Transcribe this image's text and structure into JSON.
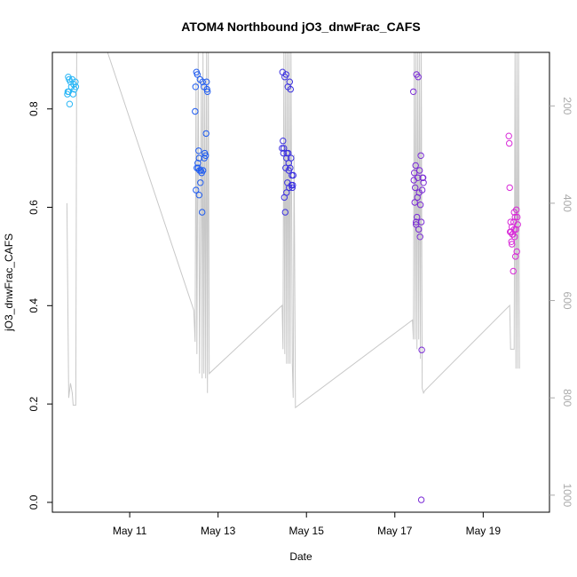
{
  "chart_data": {
    "type": "scatter",
    "title": "ATOM4 Northbound jO3_dnwFrac_CAFS",
    "xlabel": "Date",
    "ylabel": "jO3_dnwFrac_CAFS",
    "x_unit": "days in May",
    "xlim": [
      9.25,
      20.5
    ],
    "ylim": [
      -0.02,
      0.915
    ],
    "x_ticks": [
      {
        "value": 11,
        "label": "May 11"
      },
      {
        "value": 13,
        "label": "May 13"
      },
      {
        "value": 15,
        "label": "May 15"
      },
      {
        "value": 17,
        "label": "May 17"
      },
      {
        "value": 19,
        "label": "May 19"
      }
    ],
    "y_ticks": [
      {
        "value": 0.0,
        "label": "0.0"
      },
      {
        "value": 0.2,
        "label": "0.2"
      },
      {
        "value": 0.4,
        "label": "0.4"
      },
      {
        "value": 0.6,
        "label": "0.6"
      },
      {
        "value": 0.8,
        "label": "0.8"
      }
    ],
    "y2_ticks": [
      {
        "value": 200,
        "label": "200"
      },
      {
        "value": 400,
        "label": "400"
      },
      {
        "value": 600,
        "label": "600"
      },
      {
        "value": 800,
        "label": "800"
      },
      {
        "value": 1000,
        "label": "1000"
      }
    ],
    "y2lim": [
      1035,
      90
    ],
    "y2_reversed": true,
    "series": [
      {
        "color": "#29b6f6",
        "points": [
          [
            9.59,
            0.83
          ],
          [
            9.61,
            0.865
          ],
          [
            9.62,
            0.835
          ],
          [
            9.64,
            0.81
          ],
          [
            9.66,
            0.855
          ],
          [
            9.68,
            0.845
          ],
          [
            9.7,
            0.86
          ],
          [
            9.72,
            0.83
          ],
          [
            9.73,
            0.85
          ],
          [
            9.75,
            0.84
          ],
          [
            9.77,
            0.855
          ],
          [
            9.78,
            0.845
          ],
          [
            9.63,
            0.86
          ],
          [
            9.6,
            0.835
          ]
        ]
      },
      {
        "color": "#1e5bf0",
        "points": [
          [
            12.48,
            0.795
          ],
          [
            12.49,
            0.845
          ],
          [
            12.5,
            0.635
          ],
          [
            12.51,
            0.875
          ],
          [
            12.53,
            0.87
          ],
          [
            12.54,
            0.69
          ],
          [
            12.55,
            0.68
          ],
          [
            12.56,
            0.715
          ],
          [
            12.57,
            0.625
          ],
          [
            12.58,
            0.675
          ],
          [
            12.59,
            0.86
          ],
          [
            12.6,
            0.65
          ],
          [
            12.61,
            0.675
          ],
          [
            12.63,
            0.67
          ],
          [
            12.64,
            0.59
          ],
          [
            12.65,
            0.855
          ],
          [
            12.66,
            0.675
          ],
          [
            12.68,
            0.845
          ],
          [
            12.69,
            0.7
          ],
          [
            12.7,
            0.71
          ],
          [
            12.72,
            0.705
          ],
          [
            12.73,
            0.75
          ],
          [
            12.74,
            0.855
          ],
          [
            12.75,
            0.84
          ],
          [
            12.76,
            0.835
          ],
          [
            12.52,
            0.68
          ],
          [
            12.57,
            0.7
          ]
        ]
      },
      {
        "color": "#3b30e0",
        "points": [
          [
            14.45,
            0.72
          ],
          [
            14.46,
            0.875
          ],
          [
            14.47,
            0.735
          ],
          [
            14.48,
            0.71
          ],
          [
            14.49,
            0.72
          ],
          [
            14.5,
            0.62
          ],
          [
            14.51,
            0.865
          ],
          [
            14.52,
            0.59
          ],
          [
            14.53,
            0.68
          ],
          [
            14.54,
            0.87
          ],
          [
            14.55,
            0.63
          ],
          [
            14.56,
            0.71
          ],
          [
            14.57,
            0.65
          ],
          [
            14.58,
            0.845
          ],
          [
            14.59,
            0.71
          ],
          [
            14.6,
            0.69
          ],
          [
            14.61,
            0.64
          ],
          [
            14.62,
            0.855
          ],
          [
            14.63,
            0.68
          ],
          [
            14.64,
            0.84
          ],
          [
            14.65,
            0.7
          ],
          [
            14.66,
            0.645
          ],
          [
            14.67,
            0.665
          ],
          [
            14.68,
            0.64
          ],
          [
            14.69,
            0.645
          ],
          [
            14.7,
            0.665
          ],
          [
            14.6,
            0.675
          ],
          [
            14.55,
            0.7
          ]
        ]
      },
      {
        "color": "#7a2ad6",
        "points": [
          [
            17.42,
            0.835
          ],
          [
            17.43,
            0.655
          ],
          [
            17.44,
            0.67
          ],
          [
            17.45,
            0.61
          ],
          [
            17.46,
            0.64
          ],
          [
            17.47,
            0.685
          ],
          [
            17.48,
            0.565
          ],
          [
            17.49,
            0.87
          ],
          [
            17.5,
            0.58
          ],
          [
            17.51,
            0.62
          ],
          [
            17.52,
            0.66
          ],
          [
            17.53,
            0.865
          ],
          [
            17.54,
            0.555
          ],
          [
            17.55,
            0.63
          ],
          [
            17.56,
            0.675
          ],
          [
            17.57,
            0.54
          ],
          [
            17.58,
            0.605
          ],
          [
            17.59,
            0.705
          ],
          [
            17.6,
            0.57
          ],
          [
            17.61,
            0.31
          ],
          [
            17.62,
            0.635
          ],
          [
            17.63,
            0.66
          ],
          [
            17.64,
            0.66
          ],
          [
            17.65,
            0.65
          ],
          [
            17.6,
            0.005
          ],
          [
            17.48,
            0.57
          ]
        ]
      },
      {
        "color": "#d82ad8",
        "points": [
          [
            19.58,
            0.745
          ],
          [
            19.59,
            0.73
          ],
          [
            19.6,
            0.64
          ],
          [
            19.61,
            0.55
          ],
          [
            19.62,
            0.57
          ],
          [
            19.63,
            0.55
          ],
          [
            19.64,
            0.53
          ],
          [
            19.65,
            0.56
          ],
          [
            19.66,
            0.545
          ],
          [
            19.67,
            0.545
          ],
          [
            19.68,
            0.47
          ],
          [
            19.69,
            0.57
          ],
          [
            19.7,
            0.59
          ],
          [
            19.71,
            0.54
          ],
          [
            19.72,
            0.58
          ],
          [
            19.73,
            0.5
          ],
          [
            19.74,
            0.555
          ],
          [
            19.75,
            0.595
          ],
          [
            19.76,
            0.51
          ],
          [
            19.77,
            0.58
          ],
          [
            19.78,
            0.565
          ],
          [
            19.65,
            0.525
          ],
          [
            19.7,
            0.555
          ]
        ]
      }
    ],
    "altitude_profile": {
      "color": "#c8c8c8",
      "axis": "right",
      "points": [
        [
          9.58,
          400
        ],
        [
          9.62,
          800
        ],
        [
          9.66,
          770
        ],
        [
          9.7,
          790
        ],
        [
          9.72,
          815
        ],
        [
          9.78,
          815
        ],
        [
          9.8,
          90
        ],
        [
          9.85,
          90
        ],
        [
          10.5,
          90
        ],
        [
          12.45,
          620
        ],
        [
          12.48,
          685
        ],
        [
          12.5,
          150
        ],
        [
          12.52,
          710
        ],
        [
          12.55,
          90
        ],
        [
          12.58,
          750
        ],
        [
          12.62,
          150
        ],
        [
          12.64,
          760
        ],
        [
          12.66,
          90
        ],
        [
          12.68,
          750
        ],
        [
          12.7,
          150
        ],
        [
          12.72,
          760
        ],
        [
          12.74,
          90
        ],
        [
          12.76,
          790
        ],
        [
          12.78,
          90
        ],
        [
          12.8,
          750
        ],
        [
          14.45,
          610
        ],
        [
          14.47,
          700
        ],
        [
          14.49,
          90
        ],
        [
          14.51,
          710
        ],
        [
          14.53,
          90
        ],
        [
          14.55,
          730
        ],
        [
          14.57,
          90
        ],
        [
          14.59,
          730
        ],
        [
          14.61,
          90
        ],
        [
          14.63,
          730
        ],
        [
          14.65,
          90
        ],
        [
          14.68,
          730
        ],
        [
          14.7,
          800
        ],
        [
          14.72,
          300
        ],
        [
          14.75,
          820
        ],
        [
          17.4,
          640
        ],
        [
          17.42,
          680
        ],
        [
          17.44,
          90
        ],
        [
          17.46,
          680
        ],
        [
          17.48,
          90
        ],
        [
          17.5,
          700
        ],
        [
          17.52,
          90
        ],
        [
          17.54,
          680
        ],
        [
          17.56,
          90
        ],
        [
          17.58,
          720
        ],
        [
          17.6,
          90
        ],
        [
          17.62,
          780
        ],
        [
          17.65,
          790
        ],
        [
          17.68,
          785
        ],
        [
          19.6,
          610
        ],
        [
          19.62,
          700
        ],
        [
          19.64,
          700
        ],
        [
          19.7,
          700
        ],
        [
          19.72,
          90
        ],
        [
          19.74,
          740
        ],
        [
          19.76,
          90
        ],
        [
          19.78,
          740
        ],
        [
          19.8,
          90
        ],
        [
          19.82,
          740
        ]
      ]
    }
  }
}
